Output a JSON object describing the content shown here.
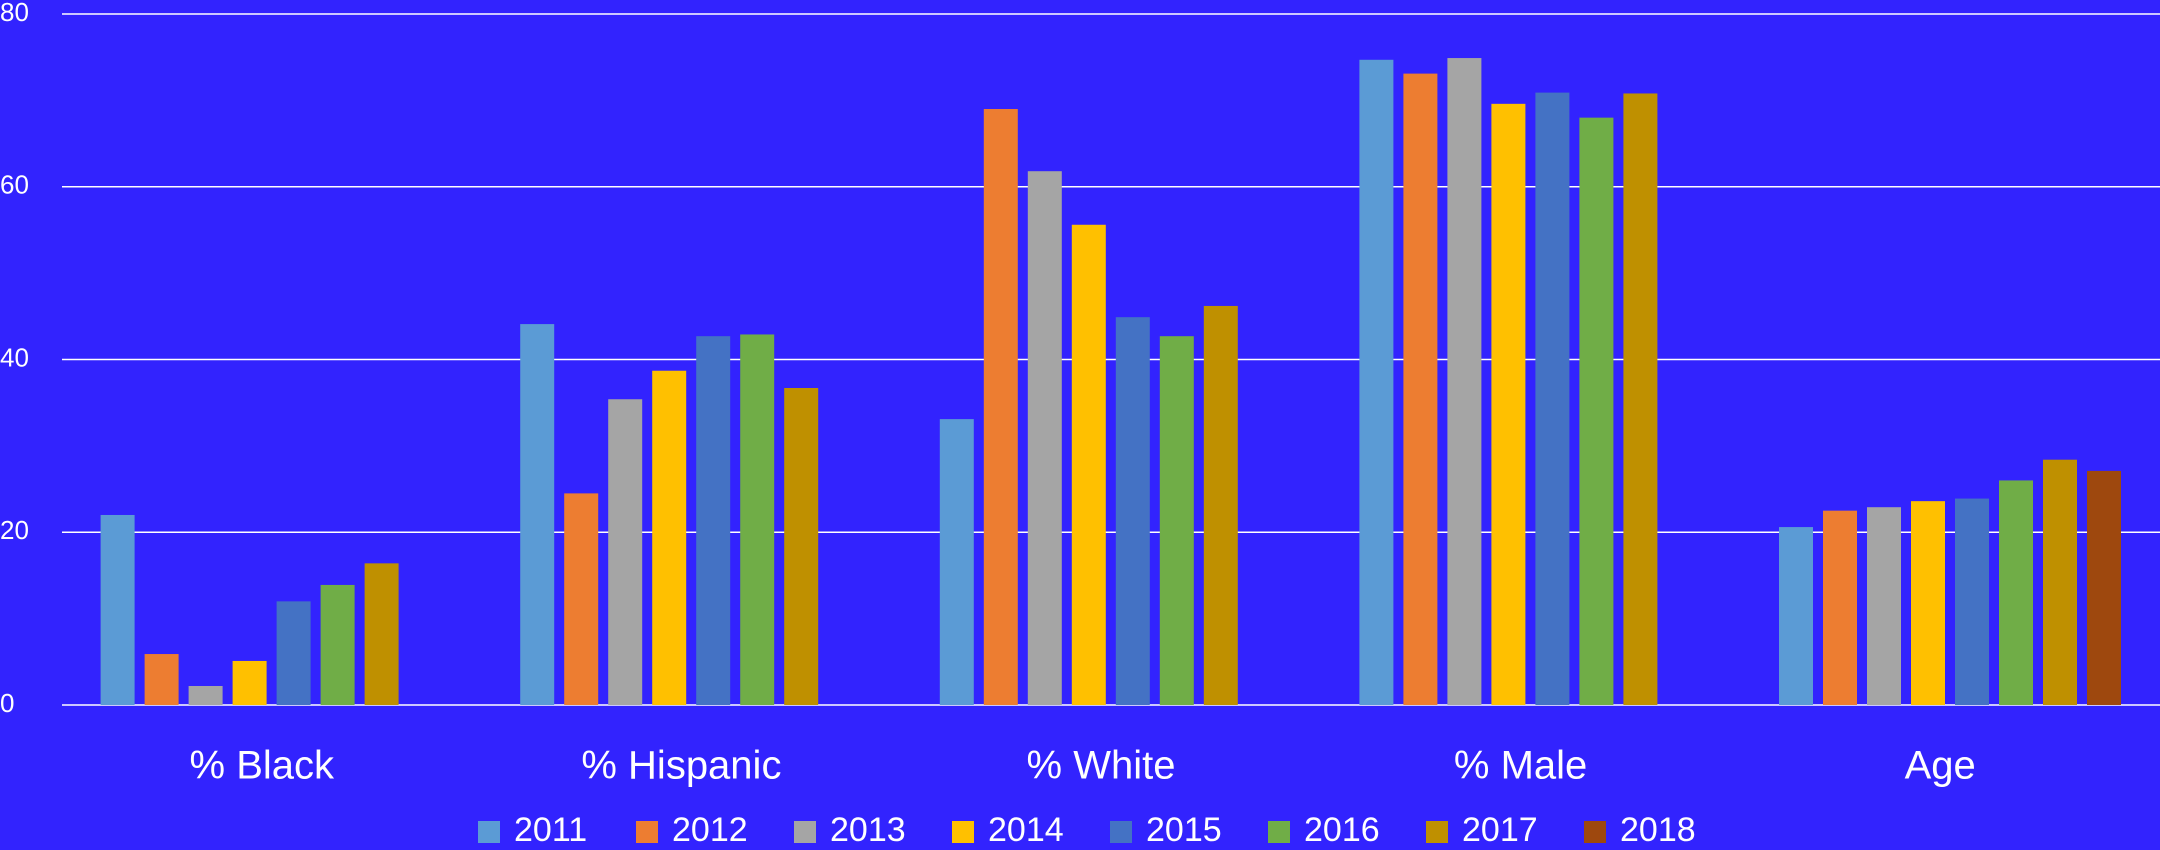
{
  "chart_data": {
    "type": "bar",
    "categories": [
      "% Black",
      "% Hispanic",
      "% White",
      "% Male",
      "Age"
    ],
    "series": [
      {
        "name": "2011",
        "color": "#5b9bd5",
        "values": [
          22.0,
          44.1,
          33.1,
          74.7,
          20.6
        ]
      },
      {
        "name": "2012",
        "color": "#ed7d31",
        "values": [
          5.9,
          24.5,
          69.0,
          73.1,
          22.5
        ]
      },
      {
        "name": "2013",
        "color": "#a5a5a5",
        "values": [
          2.2,
          35.4,
          61.8,
          74.9,
          22.9
        ]
      },
      {
        "name": "2014",
        "color": "#ffc000",
        "values": [
          5.1,
          38.7,
          55.6,
          69.6,
          23.6
        ]
      },
      {
        "name": "2015",
        "color": "#4472c4",
        "values": [
          12.0,
          42.7,
          44.9,
          70.9,
          23.9
        ]
      },
      {
        "name": "2016",
        "color": "#70ad47",
        "values": [
          13.9,
          42.9,
          42.7,
          68.0,
          26.0
        ]
      },
      {
        "name": "2017",
        "color": "#bf9000",
        "values": [
          16.4,
          36.7,
          46.2,
          70.8,
          28.4
        ]
      },
      {
        "name": "2018",
        "color": "#9e480e",
        "values": [
          null,
          null,
          null,
          null,
          27.1
        ]
      }
    ],
    "ylim": [
      0,
      80
    ],
    "yticks": [
      0,
      20,
      40,
      60,
      80
    ],
    "grid": true,
    "legend": "bottom"
  }
}
